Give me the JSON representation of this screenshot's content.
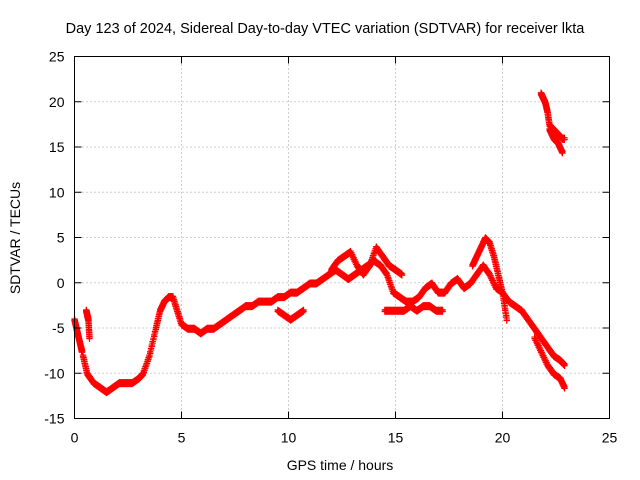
{
  "chart_data": {
    "type": "scatter",
    "title": "Day 123 of 2024, Sidereal Day-to-day VTEC variation (SDTVAR) for receiver lkta",
    "xlabel": "GPS time / hours",
    "ylabel": "SDTVAR / TECUs",
    "xlim": [
      0,
      25
    ],
    "ylim": [
      -15,
      25
    ],
    "xticks": [
      "0",
      "5",
      "10",
      "15",
      "20",
      "25"
    ],
    "yticks": [
      "-15",
      "-10",
      "-5",
      "0",
      "5",
      "10",
      "15",
      "20",
      "25"
    ],
    "grid": true,
    "marker": "plus",
    "color": "#ff0000",
    "series": [
      {
        "name": "early-drop",
        "x": [
          0.0,
          0.1,
          0.2,
          0.3,
          0.35
        ],
        "y": [
          -4,
          -5,
          -6,
          -7,
          -7.5
        ]
      },
      {
        "name": "early-spike",
        "x": [
          0.55,
          0.6,
          0.65,
          0.7
        ],
        "y": [
          -3,
          -3.5,
          -4,
          -6
        ]
      },
      {
        "name": "main",
        "x": [
          0.4,
          0.6,
          0.9,
          1.2,
          1.5,
          1.8,
          2.1,
          2.4,
          2.7,
          3.0,
          3.2,
          3.5,
          3.8,
          4.0,
          4.2,
          4.4,
          4.6,
          4.8,
          5.0,
          5.3,
          5.6,
          5.9,
          6.2,
          6.5,
          6.8,
          7.1,
          7.4,
          7.7,
          8.0,
          8.3,
          8.6,
          8.9,
          9.2,
          9.5,
          9.8,
          10.1,
          10.4,
          10.7,
          11.0,
          11.3,
          11.6,
          11.9,
          12.2,
          12.5,
          12.8,
          13.1,
          13.4,
          13.7,
          14.0,
          14.3,
          14.6,
          14.9,
          15.2,
          15.5,
          15.8,
          16.1,
          16.4,
          16.7,
          17.0,
          17.3,
          17.6,
          17.9,
          18.2,
          18.5,
          18.8,
          19.1,
          19.4,
          19.7,
          20.0,
          20.3,
          20.6,
          20.9,
          21.2,
          21.5,
          21.8,
          22.1,
          22.4,
          22.7,
          22.9
        ],
        "y": [
          -8,
          -10,
          -11,
          -11.5,
          -12,
          -11.5,
          -11,
          -11,
          -11,
          -10.5,
          -10,
          -8,
          -5,
          -3,
          -2,
          -1.5,
          -1.5,
          -3,
          -4.5,
          -5,
          -5,
          -5.5,
          -5,
          -5,
          -4.5,
          -4,
          -3.5,
          -3,
          -2.5,
          -2.5,
          -2,
          -2,
          -2,
          -1.5,
          -1.5,
          -1,
          -1,
          -0.5,
          0,
          0,
          0.5,
          1,
          1.5,
          1,
          0.5,
          1,
          1.5,
          2,
          2.5,
          2,
          1,
          -1,
          -1.5,
          -2,
          -2,
          -1.5,
          -0.5,
          0,
          -1,
          -1,
          0,
          0.5,
          -0.5,
          0,
          1,
          2,
          1,
          -0.5,
          -1,
          -2,
          -2.5,
          -3,
          -4,
          -5,
          -6,
          -7,
          -8,
          -8.5,
          -9
        ]
      },
      {
        "name": "upper-branch",
        "x": [
          12.0,
          12.3,
          12.6,
          12.9,
          13.2,
          13.5,
          13.8,
          14.1,
          14.4,
          14.7,
          15.0,
          15.3
        ],
        "y": [
          1.5,
          2.5,
          3,
          3.5,
          2,
          1,
          2,
          4,
          3,
          2,
          1.5,
          1
        ]
      },
      {
        "name": "lower-branch",
        "x": [
          14.5,
          14.8,
          15.1,
          15.4,
          15.7,
          16.0,
          16.3,
          16.6,
          16.9,
          17.2
        ],
        "y": [
          -3,
          -3,
          -3,
          -3,
          -2.5,
          -3,
          -2.5,
          -2.5,
          -3,
          -3
        ]
      },
      {
        "name": "peak",
        "x": [
          18.6,
          18.8,
          19.0,
          19.2,
          19.4,
          19.6,
          19.8,
          20.0,
          20.2
        ],
        "y": [
          2,
          3,
          4,
          5,
          4.5,
          3,
          1,
          -1,
          -4
        ]
      },
      {
        "name": "dip-branch",
        "x": [
          9.5,
          9.8,
          10.1,
          10.4,
          10.7
        ],
        "y": [
          -3,
          -3.5,
          -4,
          -3.5,
          -3
        ]
      },
      {
        "name": "late-high",
        "x": [
          21.8,
          21.9,
          22.0,
          22.1,
          22.2,
          22.4,
          22.6,
          22.8,
          22.9
        ],
        "y": [
          21,
          20.5,
          20,
          19,
          17.5,
          17,
          16.5,
          16,
          16
        ]
      },
      {
        "name": "late-high-lower",
        "x": [
          22.2,
          22.4,
          22.6,
          22.8
        ],
        "y": [
          17,
          16,
          15.5,
          14.5
        ]
      },
      {
        "name": "late-low",
        "x": [
          21.5,
          21.8,
          22.1,
          22.4,
          22.7,
          22.9
        ],
        "y": [
          -6,
          -7.5,
          -9,
          -10,
          -10.5,
          -11.5
        ]
      }
    ]
  }
}
